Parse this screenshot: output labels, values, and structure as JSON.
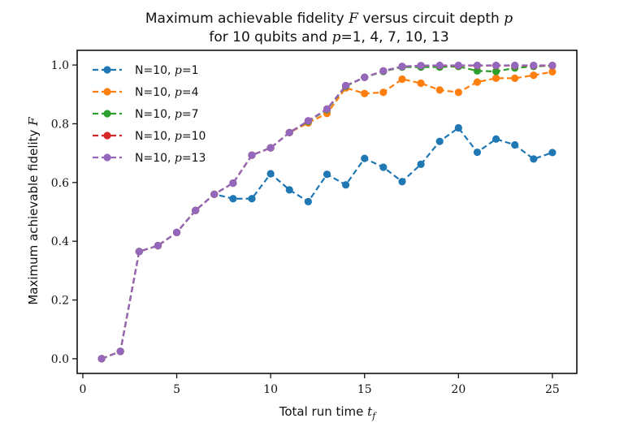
{
  "chart_data": {
    "type": "line",
    "title": {
      "line1_prefix": "Maximum achievable fidelity",
      "line1_var": "F",
      "line1_mid": "versus circuit depth",
      "line1_var2": "p",
      "line2_prefix": "for 10 qubits and",
      "line2_var": "p",
      "line2_suffix": "=1, 4, 7, 10, 13"
    },
    "xlabel": {
      "text": "Total run time",
      "var": "t",
      "sub": "f"
    },
    "ylabel": {
      "text": "Maximum achievable fidelity",
      "var": "F"
    },
    "xlim": [
      -0.3,
      26.3
    ],
    "ylim": [
      -0.05,
      1.05
    ],
    "xticks": [
      0,
      5,
      10,
      15,
      20,
      25
    ],
    "xtick_labels": [
      "0",
      "5",
      "10",
      "15",
      "20",
      "25"
    ],
    "yticks": [
      0.0,
      0.2,
      0.4,
      0.6,
      0.8,
      1.0
    ],
    "ytick_labels": [
      "0.0",
      "0.2",
      "0.4",
      "0.6",
      "0.8",
      "1.0"
    ],
    "legend_position": "top-left",
    "x": [
      1,
      2,
      3,
      4,
      5,
      6,
      7,
      8,
      9,
      10,
      11,
      12,
      13,
      14,
      15,
      16,
      17,
      18,
      19,
      20,
      21,
      22,
      23,
      24,
      25
    ],
    "series": [
      {
        "name_prefix": "N=10, ",
        "name_var": "p",
        "name_suffix": "=1",
        "color": "#1f77b4",
        "values": [
          0.0,
          0.025,
          0.365,
          0.385,
          0.43,
          0.505,
          0.56,
          0.545,
          0.545,
          0.63,
          0.575,
          0.535,
          0.628,
          0.592,
          0.682,
          0.652,
          0.603,
          0.662,
          0.74,
          0.786,
          0.703,
          0.748,
          0.728,
          0.68,
          0.702
        ]
      },
      {
        "name_prefix": "N=10, ",
        "name_var": "p",
        "name_suffix": "=4",
        "color": "#ff7f0e",
        "values": [
          0.0,
          0.025,
          0.365,
          0.385,
          0.43,
          0.505,
          0.56,
          0.598,
          0.693,
          0.718,
          0.77,
          0.803,
          0.835,
          0.922,
          0.903,
          0.907,
          0.952,
          0.938,
          0.915,
          0.907,
          0.942,
          0.955,
          0.955,
          0.965,
          0.977
        ]
      },
      {
        "name_prefix": "N=10, ",
        "name_var": "p",
        "name_suffix": "=7",
        "color": "#2ca02c",
        "values": [
          0.0,
          0.025,
          0.365,
          0.385,
          0.43,
          0.505,
          0.56,
          0.598,
          0.693,
          0.718,
          0.77,
          0.808,
          0.848,
          0.928,
          0.958,
          0.978,
          0.993,
          0.993,
          0.993,
          0.995,
          0.98,
          0.978,
          0.99,
          0.995,
          0.998
        ]
      },
      {
        "name_prefix": "N=10, ",
        "name_var": "p",
        "name_suffix": "=10",
        "color": "#d62728",
        "values": [
          0.0,
          0.025,
          0.365,
          0.385,
          0.43,
          0.505,
          0.56,
          0.598,
          0.693,
          0.718,
          0.77,
          0.81,
          0.85,
          0.93,
          0.958,
          0.98,
          0.995,
          0.998,
          0.998,
          0.998,
          0.998,
          0.998,
          0.998,
          0.998,
          0.998
        ]
      },
      {
        "name_prefix": "N=10, ",
        "name_var": "p",
        "name_suffix": "=13",
        "color": "#9467bd",
        "values": [
          0.0,
          0.025,
          0.365,
          0.385,
          0.43,
          0.505,
          0.56,
          0.598,
          0.693,
          0.718,
          0.77,
          0.81,
          0.85,
          0.93,
          0.958,
          0.98,
          0.995,
          0.998,
          0.999,
          0.999,
          0.999,
          0.999,
          0.999,
          0.999,
          0.999
        ]
      }
    ]
  }
}
